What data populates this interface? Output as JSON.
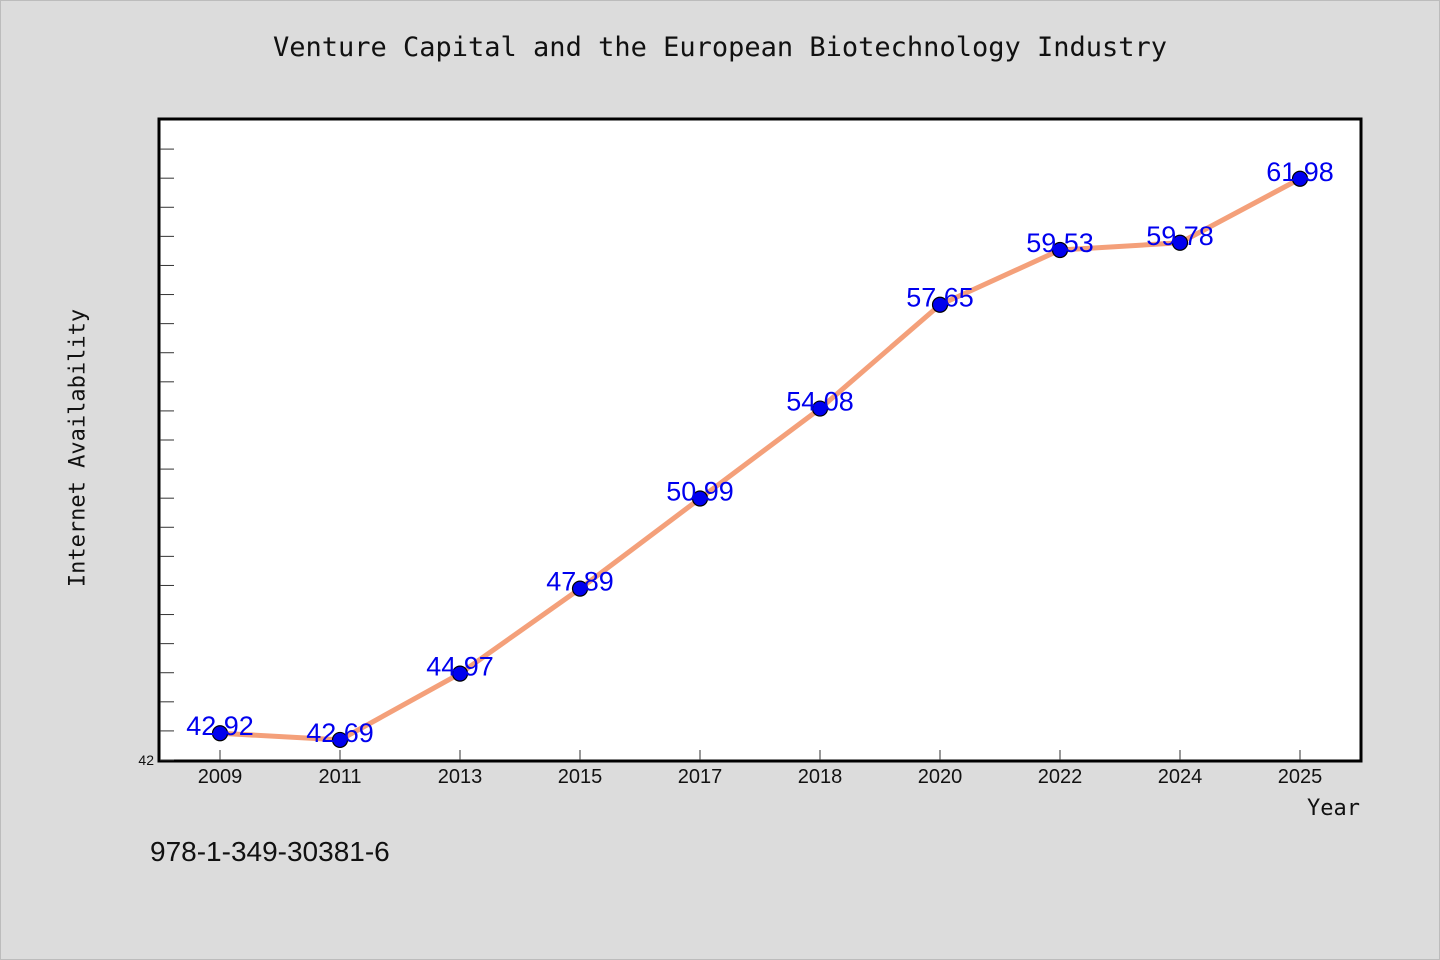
{
  "chart_data": {
    "type": "line",
    "title": "Venture Capital and the European Biotechnology Industry",
    "xlabel": "Year",
    "ylabel": "Internet Availability",
    "categories": [
      "2009",
      "2011",
      "2013",
      "2015",
      "2017",
      "2018",
      "2020",
      "2022",
      "2024",
      "2025"
    ],
    "values": [
      42.92,
      42.69,
      44.97,
      47.89,
      50.99,
      54.08,
      57.65,
      59.53,
      59.78,
      61.98
    ],
    "data_labels": [
      "42.92",
      "42.69",
      "44.97",
      "47.89",
      "50.99",
      "54.08",
      "57.65",
      "59.53",
      "59.78",
      "61.98"
    ],
    "y_tick_labels": [
      "42"
    ],
    "ylim": [
      42,
      64
    ],
    "grid": false,
    "line_color": "#f4a07a",
    "marker_color": "#0000ee",
    "label_color": "#0000ee"
  },
  "footer": {
    "code": "978-1-349-30381-6"
  }
}
